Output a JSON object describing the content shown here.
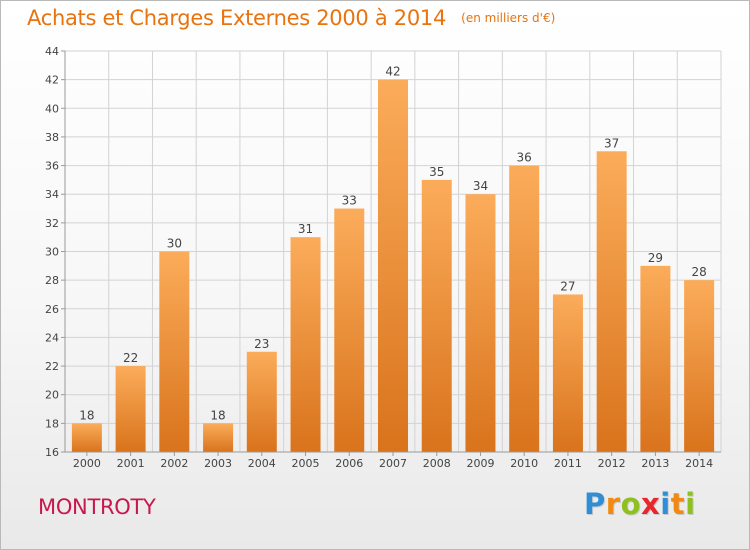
{
  "title": "Achats et Charges Externes 2000 à 2014",
  "unit": "(en milliers d'€)",
  "commune": "MONTROTY",
  "brand": {
    "text": "Proxiti",
    "letters": [
      {
        "ch": "P",
        "color": "#2f8fd6"
      },
      {
        "ch": "r",
        "color": "#f08a12"
      },
      {
        "ch": "o",
        "color": "#8ec11f"
      },
      {
        "ch": "x",
        "color": "#e8262b"
      },
      {
        "ch": "i",
        "color": "#2f8fd6"
      },
      {
        "ch": "t",
        "color": "#f08a12"
      },
      {
        "ch": "i",
        "color": "#8ec11f"
      }
    ]
  },
  "colors": {
    "title": "#e8730f",
    "commune": "#c8174e",
    "bar_light": "#fbac5a",
    "bar_dark": "#d9731c",
    "axis": "#9a9a9a",
    "grid": "#d3d3d3"
  },
  "chart_data": {
    "type": "bar",
    "title": "Achats et Charges Externes 2000 à 2014",
    "subtitle": "(en milliers d'€)",
    "xlabel": "",
    "ylabel": "",
    "categories": [
      "2000",
      "2001",
      "2002",
      "2003",
      "2004",
      "2005",
      "2006",
      "2007",
      "2008",
      "2009",
      "2010",
      "2011",
      "2012",
      "2013",
      "2014"
    ],
    "values": [
      18,
      22,
      30,
      18,
      23,
      31,
      33,
      42,
      35,
      34,
      36,
      27,
      37,
      29,
      28
    ],
    "ylim": [
      16,
      44
    ],
    "yticks": [
      16,
      18,
      20,
      22,
      24,
      26,
      28,
      30,
      32,
      34,
      36,
      38,
      40,
      42,
      44
    ],
    "grid": true,
    "data_labels": true
  }
}
